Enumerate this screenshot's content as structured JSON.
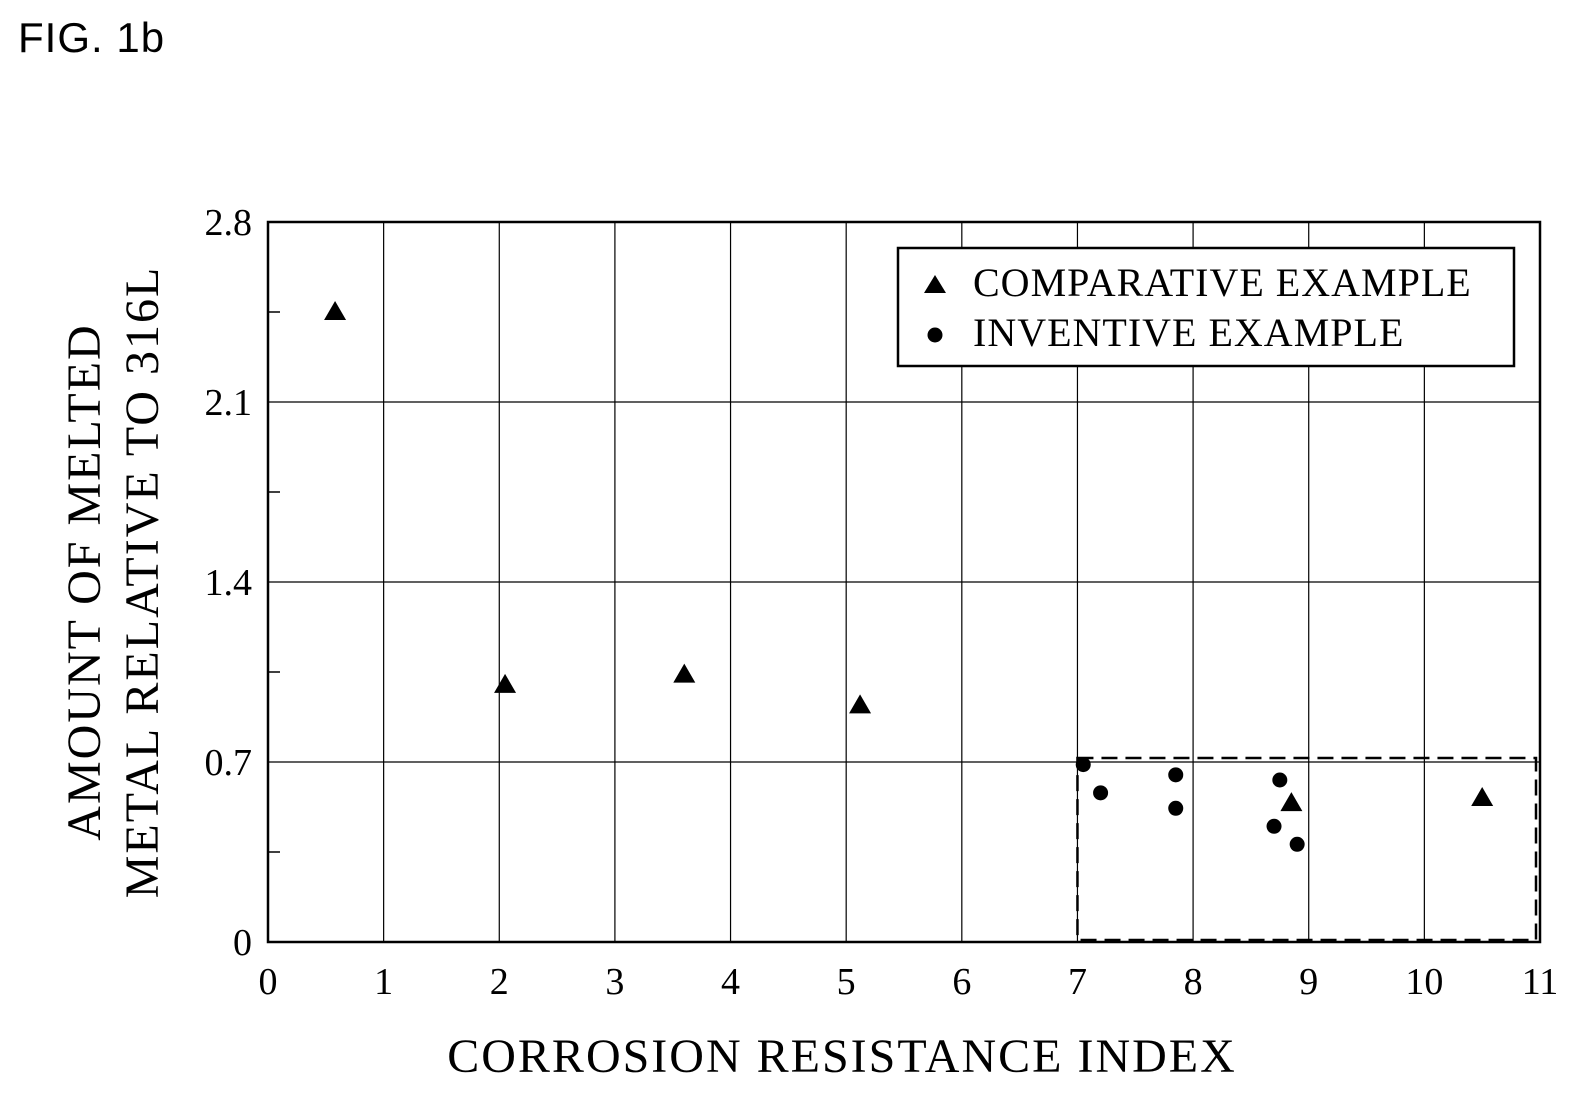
{
  "figure": {
    "label": "FIG. 1b"
  },
  "chart_data": {
    "type": "scatter",
    "xlabel": "CORROSION RESISTANCE INDEX",
    "ylabel_lines": [
      "AMOUNT OF MELTED",
      "METAL RELATIVE TO 316L"
    ],
    "xlim": [
      0,
      11
    ],
    "ylim": [
      0,
      2.8
    ],
    "x_ticks": [
      "0",
      "1",
      "2",
      "3",
      "4",
      "5",
      "6",
      "7",
      "8",
      "9",
      "10",
      "11"
    ],
    "y_ticks": [
      "0",
      "0.7",
      "1.4",
      "2.1",
      "2.8"
    ],
    "grid": true,
    "legend_position": "top-right",
    "series": [
      {
        "name": "COMPARATIVE EXAMPLE",
        "marker": "triangle",
        "color": "#000000",
        "points": [
          {
            "x": 0.58,
            "y": 2.45
          },
          {
            "x": 2.05,
            "y": 1.0
          },
          {
            "x": 3.6,
            "y": 1.04
          },
          {
            "x": 5.12,
            "y": 0.92
          },
          {
            "x": 8.85,
            "y": 0.54
          },
          {
            "x": 10.5,
            "y": 0.56
          }
        ]
      },
      {
        "name": "INVENTIVE EXAMPLE",
        "marker": "circle",
        "color": "#000000",
        "points": [
          {
            "x": 7.05,
            "y": 0.69
          },
          {
            "x": 7.2,
            "y": 0.58
          },
          {
            "x": 7.85,
            "y": 0.65
          },
          {
            "x": 7.85,
            "y": 0.52
          },
          {
            "x": 8.75,
            "y": 0.63
          },
          {
            "x": 8.7,
            "y": 0.45
          },
          {
            "x": 8.9,
            "y": 0.38
          }
        ]
      }
    ],
    "region_box": {
      "style": "dashed",
      "x": [
        7,
        11
      ],
      "y": [
        0,
        0.7
      ]
    }
  }
}
